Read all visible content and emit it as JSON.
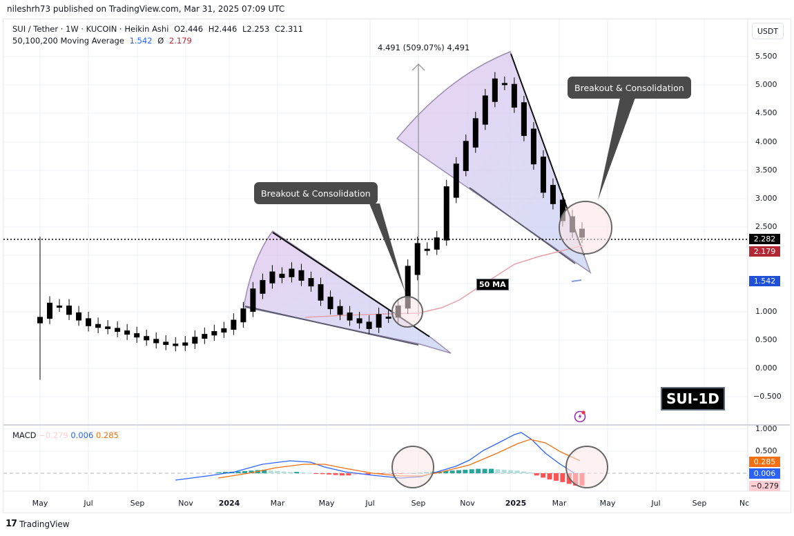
{
  "publish_line": "nileshrh73 published on TradingView.com, Mar 31, 2025 07:09 UTC",
  "header": {
    "symbol": "SUI / Tether · 1W · KUCOIN · Heikin Ashi",
    "open": "O2.446",
    "high": "H2.446",
    "low": "L2.253",
    "close": "C2.311",
    "ma_label": "50,100,200 Moving Average",
    "ma_value_1": "1.542",
    "ma_value_2_icon": "Ø",
    "ma_value_2": "2.179"
  },
  "currency_button": "USDT",
  "price_axis": {
    "ticks": [
      "5.500",
      "5.000",
      "4.500",
      "4.000",
      "3.500",
      "3.000",
      "2.500",
      "1.000",
      "0.500",
      "0.000",
      "−0.500"
    ],
    "tags": {
      "last_price": {
        "value": "2.282",
        "color": "#000000"
      },
      "ma_red": {
        "value": "2.179",
        "color": "#b22833"
      },
      "ma_blue": {
        "value": "1.542",
        "color": "#2050d8"
      }
    }
  },
  "macd_axis": {
    "ticks": [
      "1.000",
      "0.500"
    ],
    "tags": {
      "signal": {
        "value": "0.285",
        "color": "#f2700f"
      },
      "macd": {
        "value": "0.006",
        "color": "#2962ff"
      },
      "hist": {
        "value": "−0.279",
        "color": "#ffcdd2"
      }
    }
  },
  "time_axis": [
    "May",
    "Jul",
    "Sep",
    "Nov",
    "2024",
    "Mar",
    "May",
    "Jul",
    "Sep",
    "Nov",
    "2025",
    "Mar",
    "May",
    "Jul",
    "Sep",
    "Nc"
  ],
  "macd_legend": {
    "label": "MACD",
    "hist": "−0.279",
    "macd": "0.006",
    "signal": "0.285"
  },
  "annotations": {
    "measure": "4.491 (509.07%) 4,491",
    "callout_left": "Breakout & Consolidation",
    "callout_right": "Breakout & Consolidation",
    "ma_tag": "50 MA",
    "sui_tag": "SUI-1D"
  },
  "footer": {
    "logo": "17",
    "brand": "TradingView"
  },
  "chart_data": [
    {
      "type": "candlestick",
      "title": "SUI / Tether · 1W · KUCOIN · Heikin Ashi",
      "ohlc_last": {
        "open": 2.446,
        "high": 2.446,
        "low": 2.253,
        "close": 2.311
      },
      "ylabel": "USDT",
      "ylim": [
        -0.75,
        5.9
      ],
      "x_ticks": [
        "May",
        "Jul",
        "Sep",
        "Nov",
        "2024",
        "Mar",
        "May",
        "Jul",
        "Sep",
        "Nov",
        "2025",
        "Mar",
        "May",
        "Jul",
        "Sep",
        "Nov"
      ],
      "y_ticks": [
        -0.5,
        0,
        0.5,
        1,
        1.5,
        2,
        2.5,
        3,
        3.5,
        4,
        4.5,
        5,
        5.5
      ],
      "last_price": 2.282,
      "series": [
        {
          "name": "50 MA",
          "last": 2.179,
          "color": "#e8a0a8"
        },
        {
          "name": "Moving Average (blue)",
          "last": 1.542,
          "color": "#2962ff"
        }
      ],
      "approx_weekly_close_path": [
        0.9,
        1.15,
        1.1,
        0.95,
        0.85,
        0.75,
        0.72,
        0.7,
        0.65,
        0.6,
        0.55,
        0.5,
        0.45,
        0.42,
        0.4,
        0.45,
        0.55,
        0.6,
        0.65,
        0.7,
        0.85,
        1.05,
        1.4,
        1.55,
        1.7,
        1.6,
        1.75,
        1.55,
        1.45,
        1.2,
        1.05,
        0.95,
        0.85,
        0.8,
        0.7,
        0.95,
        0.9,
        1.1,
        1.8,
        2.2,
        2.1,
        2.3,
        3.2,
        3.6,
        4.0,
        4.4,
        4.8,
        5.1,
        5.0,
        4.6,
        4.1,
        3.6,
        3.1,
        2.9,
        2.6,
        2.4,
        2.31
      ],
      "grid": true,
      "legend_position": "top-left"
    },
    {
      "type": "bar+line",
      "title": "MACD",
      "series": [
        {
          "name": "Histogram",
          "last": -0.279,
          "colors": [
            "#26a69a",
            "#b2dfdb",
            "#ff5252",
            "#ffcdd2"
          ]
        },
        {
          "name": "MACD",
          "last": 0.006,
          "color": "#2962ff"
        },
        {
          "name": "Signal",
          "last": 0.285,
          "color": "#f2700f"
        }
      ],
      "ylim": [
        -0.5,
        1.1
      ],
      "y_ticks": [
        0.5,
        1.0
      ]
    }
  ]
}
